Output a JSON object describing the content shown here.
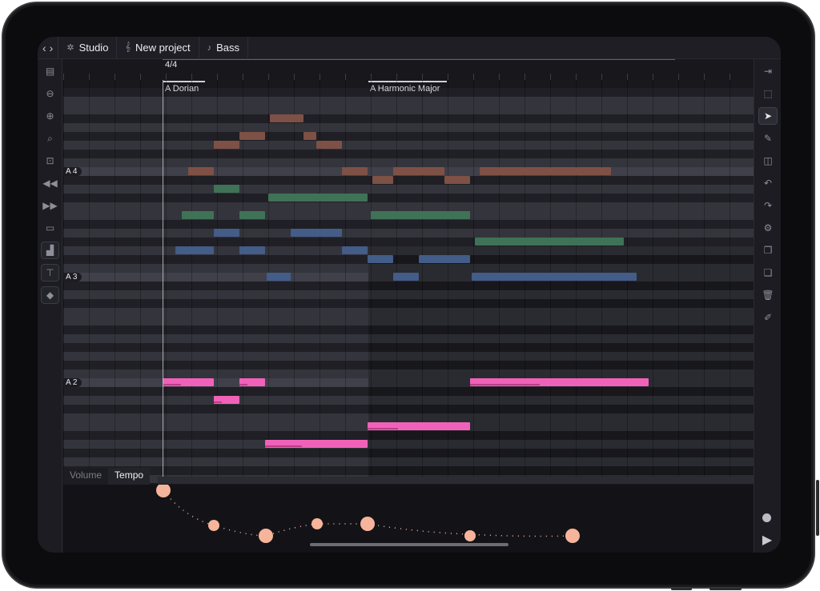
{
  "nav": {
    "back_icon": "chevron-left-icon",
    "forward_icon": "chevron-right-icon"
  },
  "breadcrumbs": [
    {
      "label": "Studio",
      "icon": "gear-icon"
    },
    {
      "label": "New project",
      "icon": "treble-clef-icon"
    },
    {
      "label": "Bass",
      "icon": "music-note-icon"
    }
  ],
  "ruler": {
    "time_signature": "4/4"
  },
  "scales": [
    {
      "label": "A Dorian"
    },
    {
      "label": "A Harmonic Major"
    }
  ],
  "pitch_labels": [
    "A 4",
    "A 3",
    "A 2"
  ],
  "lanes": {
    "tabs": [
      "Volume",
      "Tempo"
    ],
    "active": "Tempo"
  },
  "tools_left": [
    "layout-icon",
    "zoom-out-icon",
    "zoom-in-icon",
    "zoom-fit-icon",
    "focus-icon",
    "rewind-icon",
    "fast-forward-icon",
    "panel-icon",
    "bar-chart-icon",
    "paint-roller-icon",
    "tag-icon"
  ],
  "tools_right": [
    "collapse-icon",
    "marquee-select-icon",
    "pointer-icon",
    "pencil-icon",
    "split-icon",
    "undo-icon",
    "redo-icon",
    "settings-icon",
    "copy-icon",
    "paste-icon",
    "trash-icon",
    "quantize-icon"
  ],
  "colors": {
    "bass": "#f062b9",
    "track_orange": "#7d5145",
    "track_green": "#3f7256",
    "track_blue": "#435c88",
    "tempo_point": "#f6b49b"
  }
}
